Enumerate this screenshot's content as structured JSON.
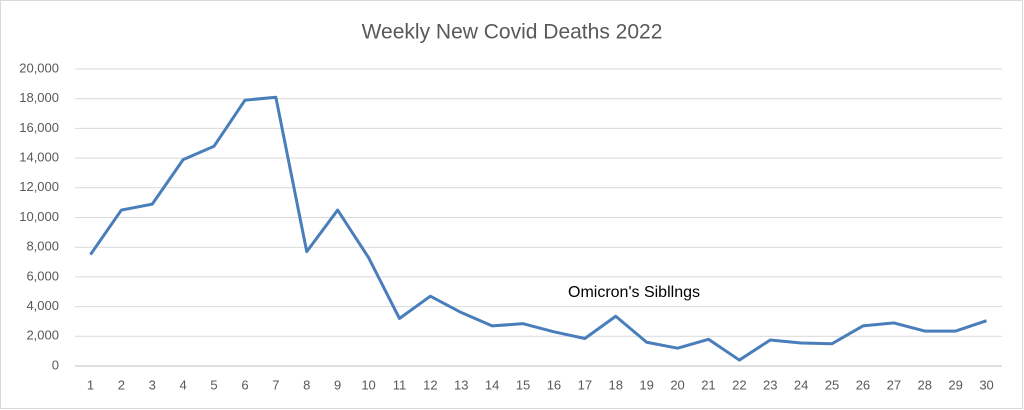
{
  "chart_data": {
    "type": "line",
    "title": "Weekly New Covid Deaths 2022",
    "annotation": "Omicron's Sibllngs",
    "categories": [
      "1",
      "2",
      "3",
      "4",
      "5",
      "6",
      "7",
      "8",
      "9",
      "10",
      "11",
      "12",
      "13",
      "14",
      "15",
      "16",
      "17",
      "18",
      "19",
      "20",
      "21",
      "22",
      "23",
      "24",
      "25",
      "26",
      "27",
      "28",
      "29",
      "30"
    ],
    "series": [
      {
        "name": "Weekly New Covid Deaths",
        "color": "#4a7ebb",
        "values": [
          7500,
          10500,
          10900,
          13900,
          14800,
          17900,
          18100,
          7700,
          10500,
          7300,
          3200,
          4700,
          3600,
          2700,
          2850,
          2300,
          1850,
          3350,
          1600,
          1200,
          1800,
          400,
          1750,
          1550,
          1500,
          2700,
          2900,
          2350,
          2350,
          3050
        ]
      }
    ],
    "ylim": [
      0,
      20000
    ],
    "yticks": [
      0,
      {
        "value": 2000,
        "label": "2,000"
      },
      {
        "value": 4000,
        "label": "4,000"
      },
      {
        "value": 6000,
        "label": "6,000"
      },
      {
        "value": 8000,
        "label": "8,000"
      },
      {
        "value": 10000,
        "label": "10,000"
      },
      {
        "value": 12000,
        "label": "12,000"
      },
      {
        "value": 14000,
        "label": "14,000"
      },
      {
        "value": 16000,
        "label": "16,000"
      },
      {
        "value": 18000,
        "label": "18,000"
      },
      {
        "value": 20000,
        "label": "20,000"
      }
    ],
    "grid": true
  }
}
